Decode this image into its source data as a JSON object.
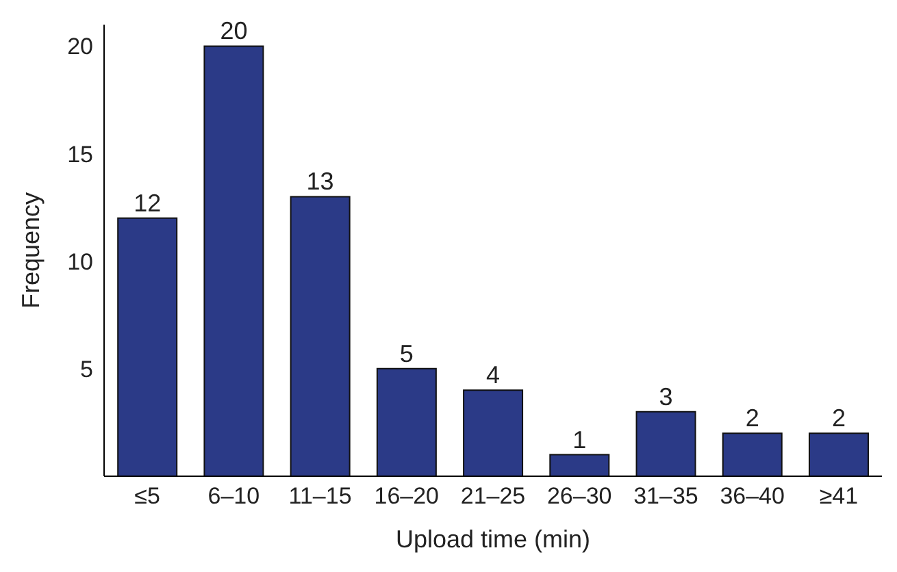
{
  "chart_data": {
    "type": "bar",
    "xlabel": "Upload time (min)",
    "ylabel": "Frequency",
    "categories": [
      "≤5",
      "6–10",
      "11–15",
      "16–20",
      "21–25",
      "26–30",
      "31–35",
      "36–40",
      "≥41"
    ],
    "values": [
      12,
      20,
      13,
      5,
      4,
      1,
      3,
      2,
      2
    ],
    "color": "#2b3a87",
    "ylim": [
      0,
      21
    ],
    "yticks": [
      5,
      10,
      15,
      20
    ],
    "grid": false,
    "data_labels": true
  }
}
